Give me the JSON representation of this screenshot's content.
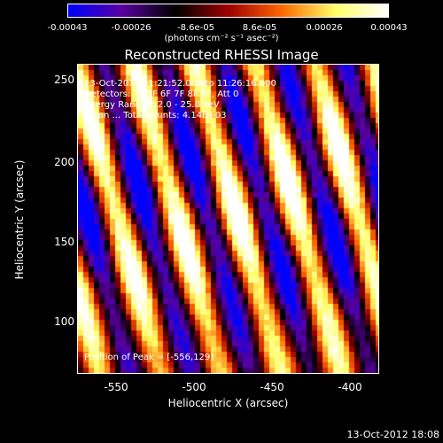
{
  "colorbar": {
    "tick_labels": [
      "-0.00043",
      "-0.00026",
      "-8.6e-05",
      "8.6e-05",
      "0.00026",
      "0.00043"
    ],
    "units": "(photons cm⁻² s⁻¹ asec⁻²)",
    "colors": [
      "#0000ff",
      "#5a00a0",
      "#000000",
      "#a00000",
      "#ff6600",
      "#ffff66",
      "#ffffff"
    ]
  },
  "title": "Reconstructed RHESSI Image",
  "info": {
    "line1": "13-Oct-2012 11:21:52.000 to 11:26:16.000",
    "line2": "Detectors: 3F 5F 6F 7F 8F 9F, Att 0",
    "line3": "Energy Range: 12.0 - 25.0 keV",
    "line4": "Clean ... Total counts: 4.14E+03",
    "peak": "Position of Peak = [-556,129]"
  },
  "axes": {
    "xlabel": "Heliocentric X (arcsec)",
    "ylabel": "Heliocentric Y (arcsec)",
    "x_ticks": [
      "-550",
      "-500",
      "-450",
      "-400"
    ],
    "y_ticks": [
      "250",
      "200",
      "150",
      "100"
    ],
    "xlim": [
      -578,
      -388
    ],
    "ylim": [
      65,
      260
    ]
  },
  "footer_date": "13-Oct-2012 18:08"
}
